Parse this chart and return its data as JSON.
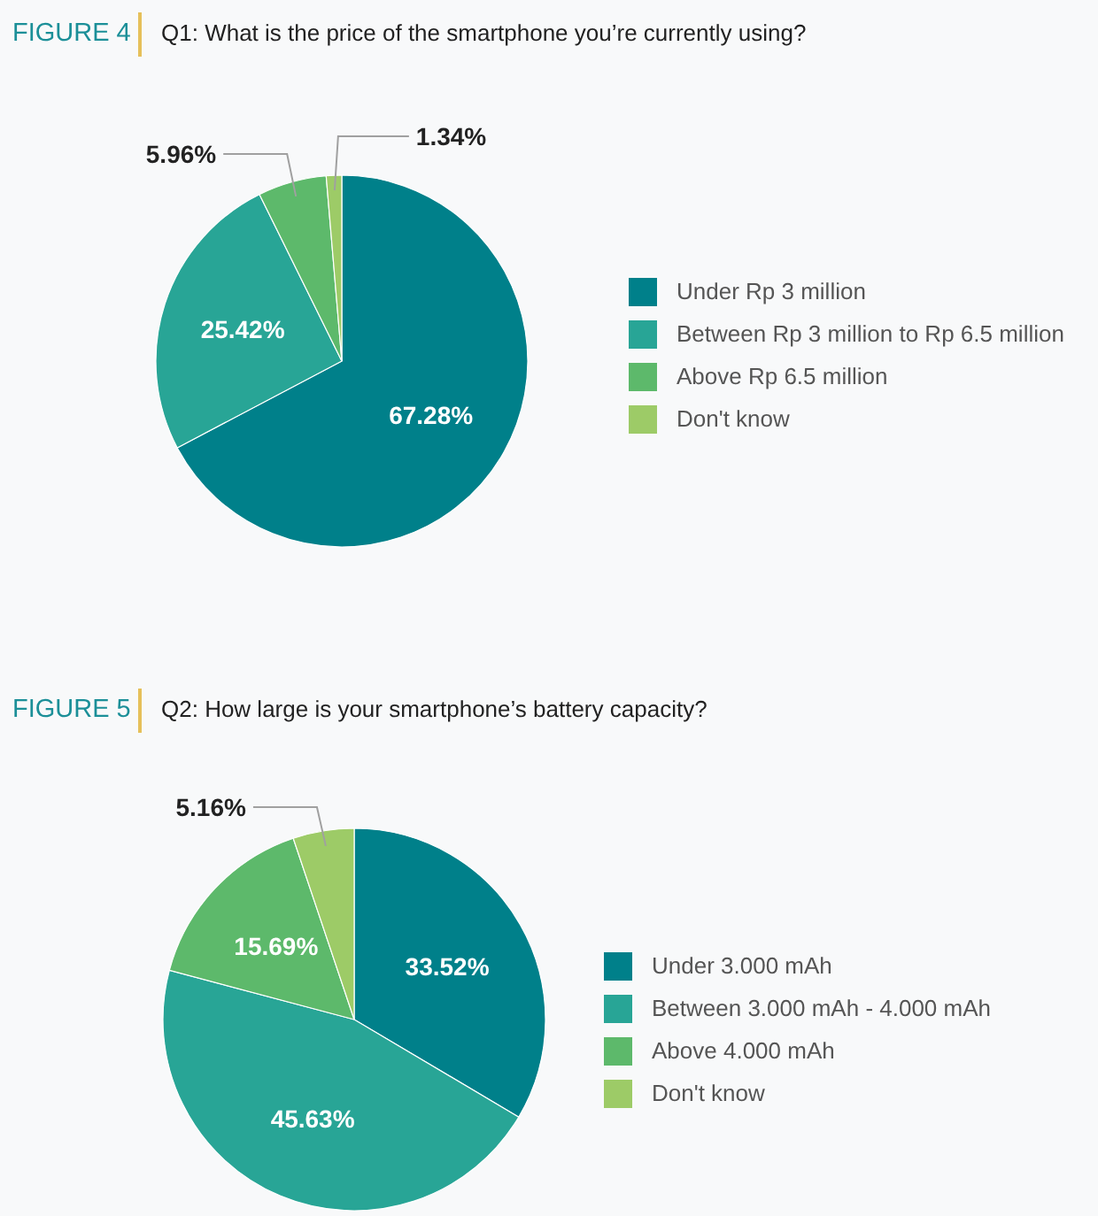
{
  "chart_data": [
    {
      "type": "pie",
      "title": "Q1: What is the price of the smartphone you’re currently using?",
      "annotations": [
        "FIGURE 4"
      ],
      "categories": [
        "Under Rp 3 million",
        "Between Rp 3 million to Rp 6.5 million",
        "Above Rp 6.5 million",
        "Don't know"
      ],
      "values": [
        67.28,
        25.42,
        5.96,
        1.34
      ],
      "value_labels": [
        "67.28%",
        "25.42%",
        "5.96%",
        "1.34%"
      ],
      "colors": [
        "#00808a",
        "#28a596",
        "#5db96b",
        "#9dcb67"
      ],
      "legend": "right"
    },
    {
      "type": "pie",
      "title": "Q2: How large is your smartphone’s battery capacity?",
      "annotations": [
        "FIGURE 5"
      ],
      "categories": [
        "Under 3.000 mAh",
        "Between 3.000 mAh - 4.000 mAh",
        "Above 4.000 mAh",
        "Don't know"
      ],
      "values": [
        33.52,
        45.63,
        15.69,
        5.16
      ],
      "value_labels": [
        "33.52%",
        "45.63%",
        "15.69%",
        "5.16%"
      ],
      "colors": [
        "#00808a",
        "#28a596",
        "#5db96b",
        "#9dcb67"
      ],
      "legend": "right"
    }
  ]
}
